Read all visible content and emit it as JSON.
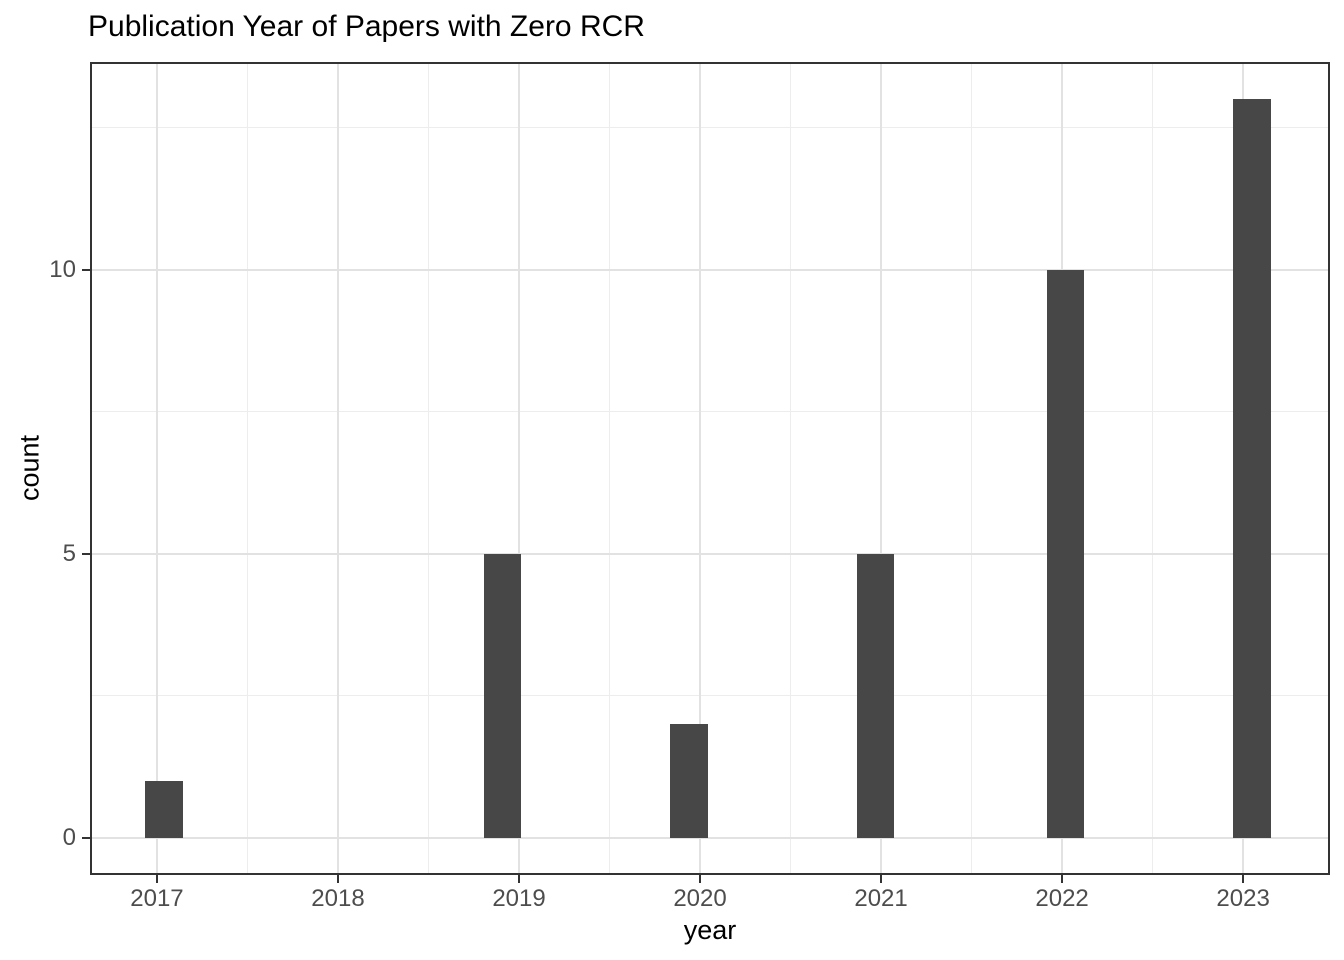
{
  "chart_data": {
    "type": "bar",
    "title": "Publication Year of Papers with Zero RCR",
    "xlabel": "year",
    "ylabel": "count",
    "categories": [
      2017,
      2018,
      2019,
      2020,
      2021,
      2022,
      2023
    ],
    "values": [
      1,
      0,
      5,
      2,
      5,
      10,
      13
    ],
    "x_ticks": [
      2017,
      2018,
      2019,
      2020,
      2021,
      2022,
      2023
    ],
    "y_ticks": [
      0,
      5,
      10
    ],
    "x_minor_gridlines": [
      2017.5,
      2018.5,
      2019.5,
      2020.5,
      2021.5,
      2022.5
    ],
    "y_minor_gridlines": [
      2.5,
      7.5,
      12.5
    ],
    "xlim": [
      2016.63,
      2023.48
    ],
    "ylim": [
      -0.65,
      13.65
    ],
    "bars": [
      {
        "year": 2017,
        "center": 2017.04,
        "count": 1
      },
      {
        "year": 2019,
        "center": 2018.91,
        "count": 5
      },
      {
        "year": 2020,
        "center": 2019.94,
        "count": 2
      },
      {
        "year": 2021,
        "center": 2020.97,
        "count": 5
      },
      {
        "year": 2022,
        "center": 2022.02,
        "count": 10
      },
      {
        "year": 2023,
        "center": 2023.05,
        "count": 13
      }
    ],
    "bar_width_years": 0.207,
    "grid": true,
    "legend": "none",
    "colors": {
      "bar_fill": "#474747",
      "grid_major": "#e2e2e2",
      "grid_minor": "#ededed",
      "panel_border": "#333333",
      "tick_mark": "#333333",
      "tick_label": "#4d4d4d",
      "title": "#000000",
      "axis_title": "#000000",
      "background": "#ffffff"
    }
  }
}
